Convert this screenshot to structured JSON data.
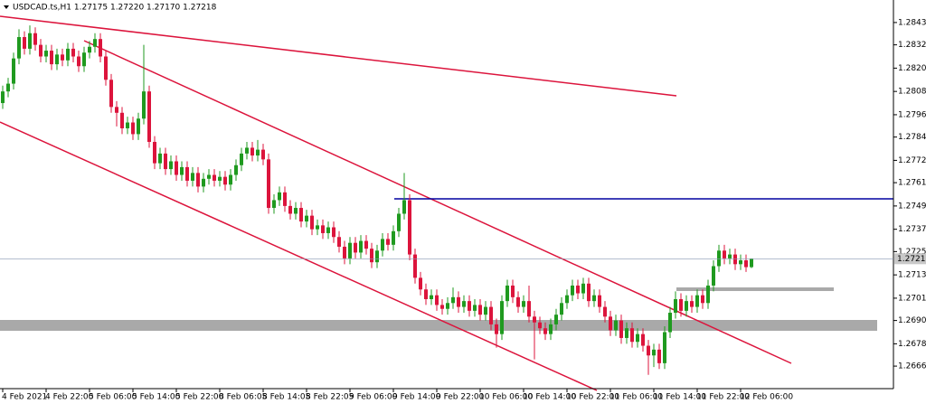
{
  "chart_data": {
    "type": "candlestick",
    "title": "USDCAD.ts,H1  1.27175 1.27220 1.27170 1.27218",
    "up_color": "#1f9a1f",
    "down_color": "#dc143c",
    "ylim": [
      1.26549,
      1.28551
    ],
    "yticks": [
      {
        "value": 1.28435,
        "label": "1.28435"
      },
      {
        "value": 1.2832,
        "label": "1.28320"
      },
      {
        "value": 1.282,
        "label": "1.28200"
      },
      {
        "value": 1.2808,
        "label": "1.28080"
      },
      {
        "value": 1.2796,
        "label": "1.27960"
      },
      {
        "value": 1.27845,
        "label": "1.27845"
      },
      {
        "value": 1.27725,
        "label": "1.27725"
      },
      {
        "value": 1.2761,
        "label": "1.27610"
      },
      {
        "value": 1.2749,
        "label": "1.27490"
      },
      {
        "value": 1.2737,
        "label": "1.27370"
      },
      {
        "value": 1.27255,
        "label": "1.27255"
      },
      {
        "value": 1.27135,
        "label": "1.27135"
      },
      {
        "value": 1.27015,
        "label": "1.27015"
      },
      {
        "value": 1.269,
        "label": "1.26900"
      },
      {
        "value": 1.2678,
        "label": "1.26780"
      },
      {
        "value": 1.26665,
        "label": "1.26665"
      }
    ],
    "categories": [
      "4 Feb 2021",
      null,
      null,
      null,
      null,
      null,
      null,
      null,
      "4 Feb 22:00",
      null,
      null,
      null,
      null,
      null,
      null,
      null,
      "5 Feb 06:00",
      null,
      null,
      null,
      null,
      null,
      null,
      null,
      "5 Feb 14:00",
      null,
      null,
      null,
      null,
      null,
      null,
      null,
      "5 Feb 22:00",
      null,
      null,
      null,
      null,
      null,
      null,
      null,
      "8 Feb 06:05",
      null,
      null,
      null,
      null,
      null,
      null,
      null,
      "8 Feb 14:05",
      null,
      null,
      null,
      null,
      null,
      null,
      null,
      "8 Feb 22:05",
      null,
      null,
      null,
      null,
      null,
      null,
      null,
      "9 Feb 06:00",
      null,
      null,
      null,
      null,
      null,
      null,
      null,
      "9 Feb 14:00",
      null,
      null,
      null,
      null,
      null,
      null,
      null,
      "9 Feb 22:00",
      null,
      null,
      null,
      null,
      null,
      null,
      null,
      "10 Feb 06:00",
      null,
      null,
      null,
      null,
      null,
      null,
      null,
      "10 Feb 14:00",
      null,
      null,
      null,
      null,
      null,
      null,
      null,
      "10 Feb 22:00",
      null,
      null,
      null,
      null,
      null,
      null,
      null,
      "11 Feb 06:00",
      null,
      null,
      null,
      null,
      null,
      null,
      null,
      "11 Feb 14:00",
      null,
      null,
      null,
      null,
      null,
      null,
      null,
      "11 Feb 22:00",
      null,
      null,
      null,
      null,
      null,
      null,
      null,
      "12 Feb 06:00",
      null,
      null
    ],
    "open": [
      1.2802,
      1.2808,
      1.2812,
      1.2825,
      1.2836,
      1.283,
      1.2838,
      1.2832,
      1.2826,
      1.2829,
      1.2822,
      1.2827,
      1.2824,
      1.283,
      1.2826,
      1.2821,
      1.2828,
      1.2831,
      1.2835,
      1.2826,
      1.2814,
      1.28,
      1.2797,
      1.2789,
      1.2792,
      1.2786,
      1.2794,
      1.2808,
      1.2782,
      1.2771,
      1.2776,
      1.2768,
      1.2772,
      1.2765,
      1.2769,
      1.2762,
      1.2766,
      1.2759,
      1.2763,
      1.2765,
      1.2762,
      1.2764,
      1.276,
      1.2765,
      1.277,
      1.2776,
      1.2779,
      1.2775,
      1.2778,
      1.2773,
      1.2748,
      1.2752,
      1.2756,
      1.2749,
      1.2745,
      1.2748,
      1.2741,
      1.2744,
      1.2737,
      1.2739,
      1.2735,
      1.2738,
      1.2733,
      1.2728,
      1.2722,
      1.273,
      1.2725,
      1.2731,
      1.2727,
      1.272,
      1.2726,
      1.2732,
      1.2729,
      1.2736,
      1.2745,
      1.2752,
      1.2724,
      1.2712,
      1.2706,
      1.2701,
      1.2703,
      1.2698,
      1.2696,
      1.2699,
      1.2702,
      1.2697,
      1.27,
      1.2695,
      1.2698,
      1.2693,
      1.2697,
      1.2688,
      1.2683,
      1.27,
      1.2708,
      1.2702,
      1.2697,
      1.27,
      1.2692,
      1.2689,
      1.2686,
      1.2683,
      1.2688,
      1.2693,
      1.2699,
      1.2703,
      1.2708,
      1.2704,
      1.2709,
      1.27,
      1.2703,
      1.2697,
      1.2692,
      1.2685,
      1.269,
      1.2681,
      1.2686,
      1.2679,
      1.2683,
      1.2677,
      1.2672,
      1.2675,
      1.2668,
      1.2684,
      1.2694,
      1.2701,
      1.2695,
      1.27,
      1.2697,
      1.2703,
      1.2699,
      1.2708,
      1.2718,
      1.2726,
      1.2722,
      1.2724,
      1.2719,
      1.2721,
      1.27175
    ],
    "high": [
      1.2811,
      1.2815,
      1.2828,
      1.284,
      1.2839,
      1.2842,
      1.2841,
      1.2835,
      1.2832,
      1.2832,
      1.283,
      1.283,
      1.2833,
      1.2833,
      1.2829,
      1.2831,
      1.2834,
      1.2838,
      1.2838,
      1.2829,
      1.2817,
      1.2803,
      1.28,
      1.2795,
      1.2795,
      1.2797,
      1.2832,
      1.2811,
      1.2785,
      1.2779,
      1.2779,
      1.2775,
      1.2775,
      1.2772,
      1.2772,
      1.2769,
      1.2769,
      1.2766,
      1.2768,
      1.2768,
      1.2767,
      1.2767,
      1.2768,
      1.2773,
      1.2779,
      1.2782,
      1.2782,
      1.2783,
      1.2781,
      1.2776,
      1.2755,
      1.2759,
      1.2759,
      1.2752,
      1.2751,
      1.2751,
      1.2747,
      1.2747,
      1.2742,
      1.2742,
      1.2741,
      1.2741,
      1.2736,
      1.2731,
      1.2733,
      1.2733,
      1.2734,
      1.2734,
      1.273,
      1.2729,
      1.2735,
      1.2735,
      1.2739,
      1.2748,
      1.2766,
      1.2755,
      1.2727,
      1.2715,
      1.2709,
      1.2706,
      1.2706,
      1.2701,
      1.2702,
      1.2707,
      1.2705,
      1.2703,
      1.2703,
      1.2701,
      1.2701,
      1.27,
      1.27,
      1.2691,
      1.2703,
      1.2711,
      1.2711,
      1.2705,
      1.2703,
      1.2708,
      1.2695,
      1.2692,
      1.2689,
      1.2691,
      1.2696,
      1.2702,
      1.2706,
      1.2711,
      1.2711,
      1.2712,
      1.2712,
      1.2706,
      1.2706,
      1.27,
      1.2695,
      1.2693,
      1.2693,
      1.2689,
      1.2689,
      1.2686,
      1.2686,
      1.268,
      1.2678,
      1.2678,
      1.2687,
      1.2697,
      1.2705,
      1.2704,
      1.2703,
      1.2703,
      1.2706,
      1.2706,
      1.2711,
      1.2721,
      1.2729,
      1.2729,
      1.2727,
      1.2727,
      1.2724,
      1.2724,
      1.2722
    ],
    "low": [
      1.2799,
      1.2805,
      1.2809,
      1.2822,
      1.2827,
      1.2827,
      1.2829,
      1.2823,
      1.2823,
      1.2819,
      1.2819,
      1.2821,
      1.2821,
      1.2823,
      1.2818,
      1.2818,
      1.2825,
      1.2828,
      1.2823,
      1.2811,
      1.2797,
      1.279,
      1.2786,
      1.2786,
      1.2783,
      1.2783,
      1.2791,
      1.2779,
      1.2768,
      1.2768,
      1.2765,
      1.2765,
      1.2762,
      1.2762,
      1.2759,
      1.2759,
      1.2756,
      1.2756,
      1.276,
      1.2759,
      1.2759,
      1.2757,
      1.2757,
      1.2762,
      1.2767,
      1.2773,
      1.2772,
      1.2772,
      1.277,
      1.2745,
      1.2745,
      1.2749,
      1.2746,
      1.2742,
      1.2742,
      1.2738,
      1.2738,
      1.2734,
      1.2734,
      1.2732,
      1.2732,
      1.273,
      1.2725,
      1.2719,
      1.2719,
      1.2722,
      1.2722,
      1.2724,
      1.2717,
      1.2717,
      1.2723,
      1.2726,
      1.2726,
      1.2733,
      1.2742,
      1.2721,
      1.2709,
      1.2703,
      1.2698,
      1.2698,
      1.2695,
      1.2693,
      1.2693,
      1.2696,
      1.2694,
      1.2694,
      1.2692,
      1.2692,
      1.269,
      1.269,
      1.2685,
      1.2676,
      1.268,
      1.2697,
      1.2699,
      1.2694,
      1.2694,
      1.2689,
      1.267,
      1.2683,
      1.268,
      1.268,
      1.2685,
      1.269,
      1.2696,
      1.27,
      1.2701,
      1.2701,
      1.2697,
      1.2697,
      1.2694,
      1.2689,
      1.2682,
      1.2682,
      1.2678,
      1.2678,
      1.2676,
      1.2676,
      1.2674,
      1.2662,
      1.2666,
      1.2665,
      1.2665,
      1.2681,
      1.2691,
      1.2692,
      1.2692,
      1.2694,
      1.2694,
      1.2696,
      1.2696,
      1.2705,
      1.2715,
      1.2719,
      1.2719,
      1.2716,
      1.2716,
      1.2715,
      1.2717
    ],
    "close": [
      1.2808,
      1.2812,
      1.2825,
      1.2836,
      1.283,
      1.2838,
      1.2832,
      1.2826,
      1.2829,
      1.2822,
      1.2827,
      1.2824,
      1.283,
      1.2826,
      1.2821,
      1.2828,
      1.2831,
      1.2835,
      1.2826,
      1.2814,
      1.28,
      1.2797,
      1.2789,
      1.2792,
      1.2786,
      1.2794,
      1.2808,
      1.2782,
      1.2771,
      1.2776,
      1.2768,
      1.2772,
      1.2765,
      1.2769,
      1.2762,
      1.2766,
      1.2759,
      1.2763,
      1.2765,
      1.2762,
      1.2764,
      1.276,
      1.2765,
      1.277,
      1.2776,
      1.2779,
      1.2775,
      1.2778,
      1.2773,
      1.2748,
      1.2752,
      1.2756,
      1.2749,
      1.2745,
      1.2748,
      1.2741,
      1.2744,
      1.2737,
      1.2739,
      1.2735,
      1.2738,
      1.2733,
      1.2728,
      1.2722,
      1.273,
      1.2725,
      1.2731,
      1.2727,
      1.272,
      1.2726,
      1.2732,
      1.2729,
      1.2736,
      1.2745,
      1.2752,
      1.2724,
      1.2712,
      1.2706,
      1.2701,
      1.2703,
      1.2698,
      1.2696,
      1.2699,
      1.2702,
      1.2697,
      1.27,
      1.2695,
      1.2698,
      1.2693,
      1.2697,
      1.2688,
      1.2683,
      1.27,
      1.2708,
      1.2702,
      1.2697,
      1.27,
      1.2692,
      1.2689,
      1.2686,
      1.2683,
      1.2688,
      1.2693,
      1.2699,
      1.2703,
      1.2708,
      1.2704,
      1.2709,
      1.27,
      1.2703,
      1.2697,
      1.2692,
      1.2685,
      1.269,
      1.2681,
      1.2686,
      1.2679,
      1.2683,
      1.2677,
      1.2672,
      1.2675,
      1.2668,
      1.2684,
      1.2694,
      1.2701,
      1.2695,
      1.27,
      1.2697,
      1.2703,
      1.2699,
      1.2708,
      1.2718,
      1.2726,
      1.2722,
      1.2724,
      1.2719,
      1.2721,
      1.27175,
      1.27218
    ]
  }
}
